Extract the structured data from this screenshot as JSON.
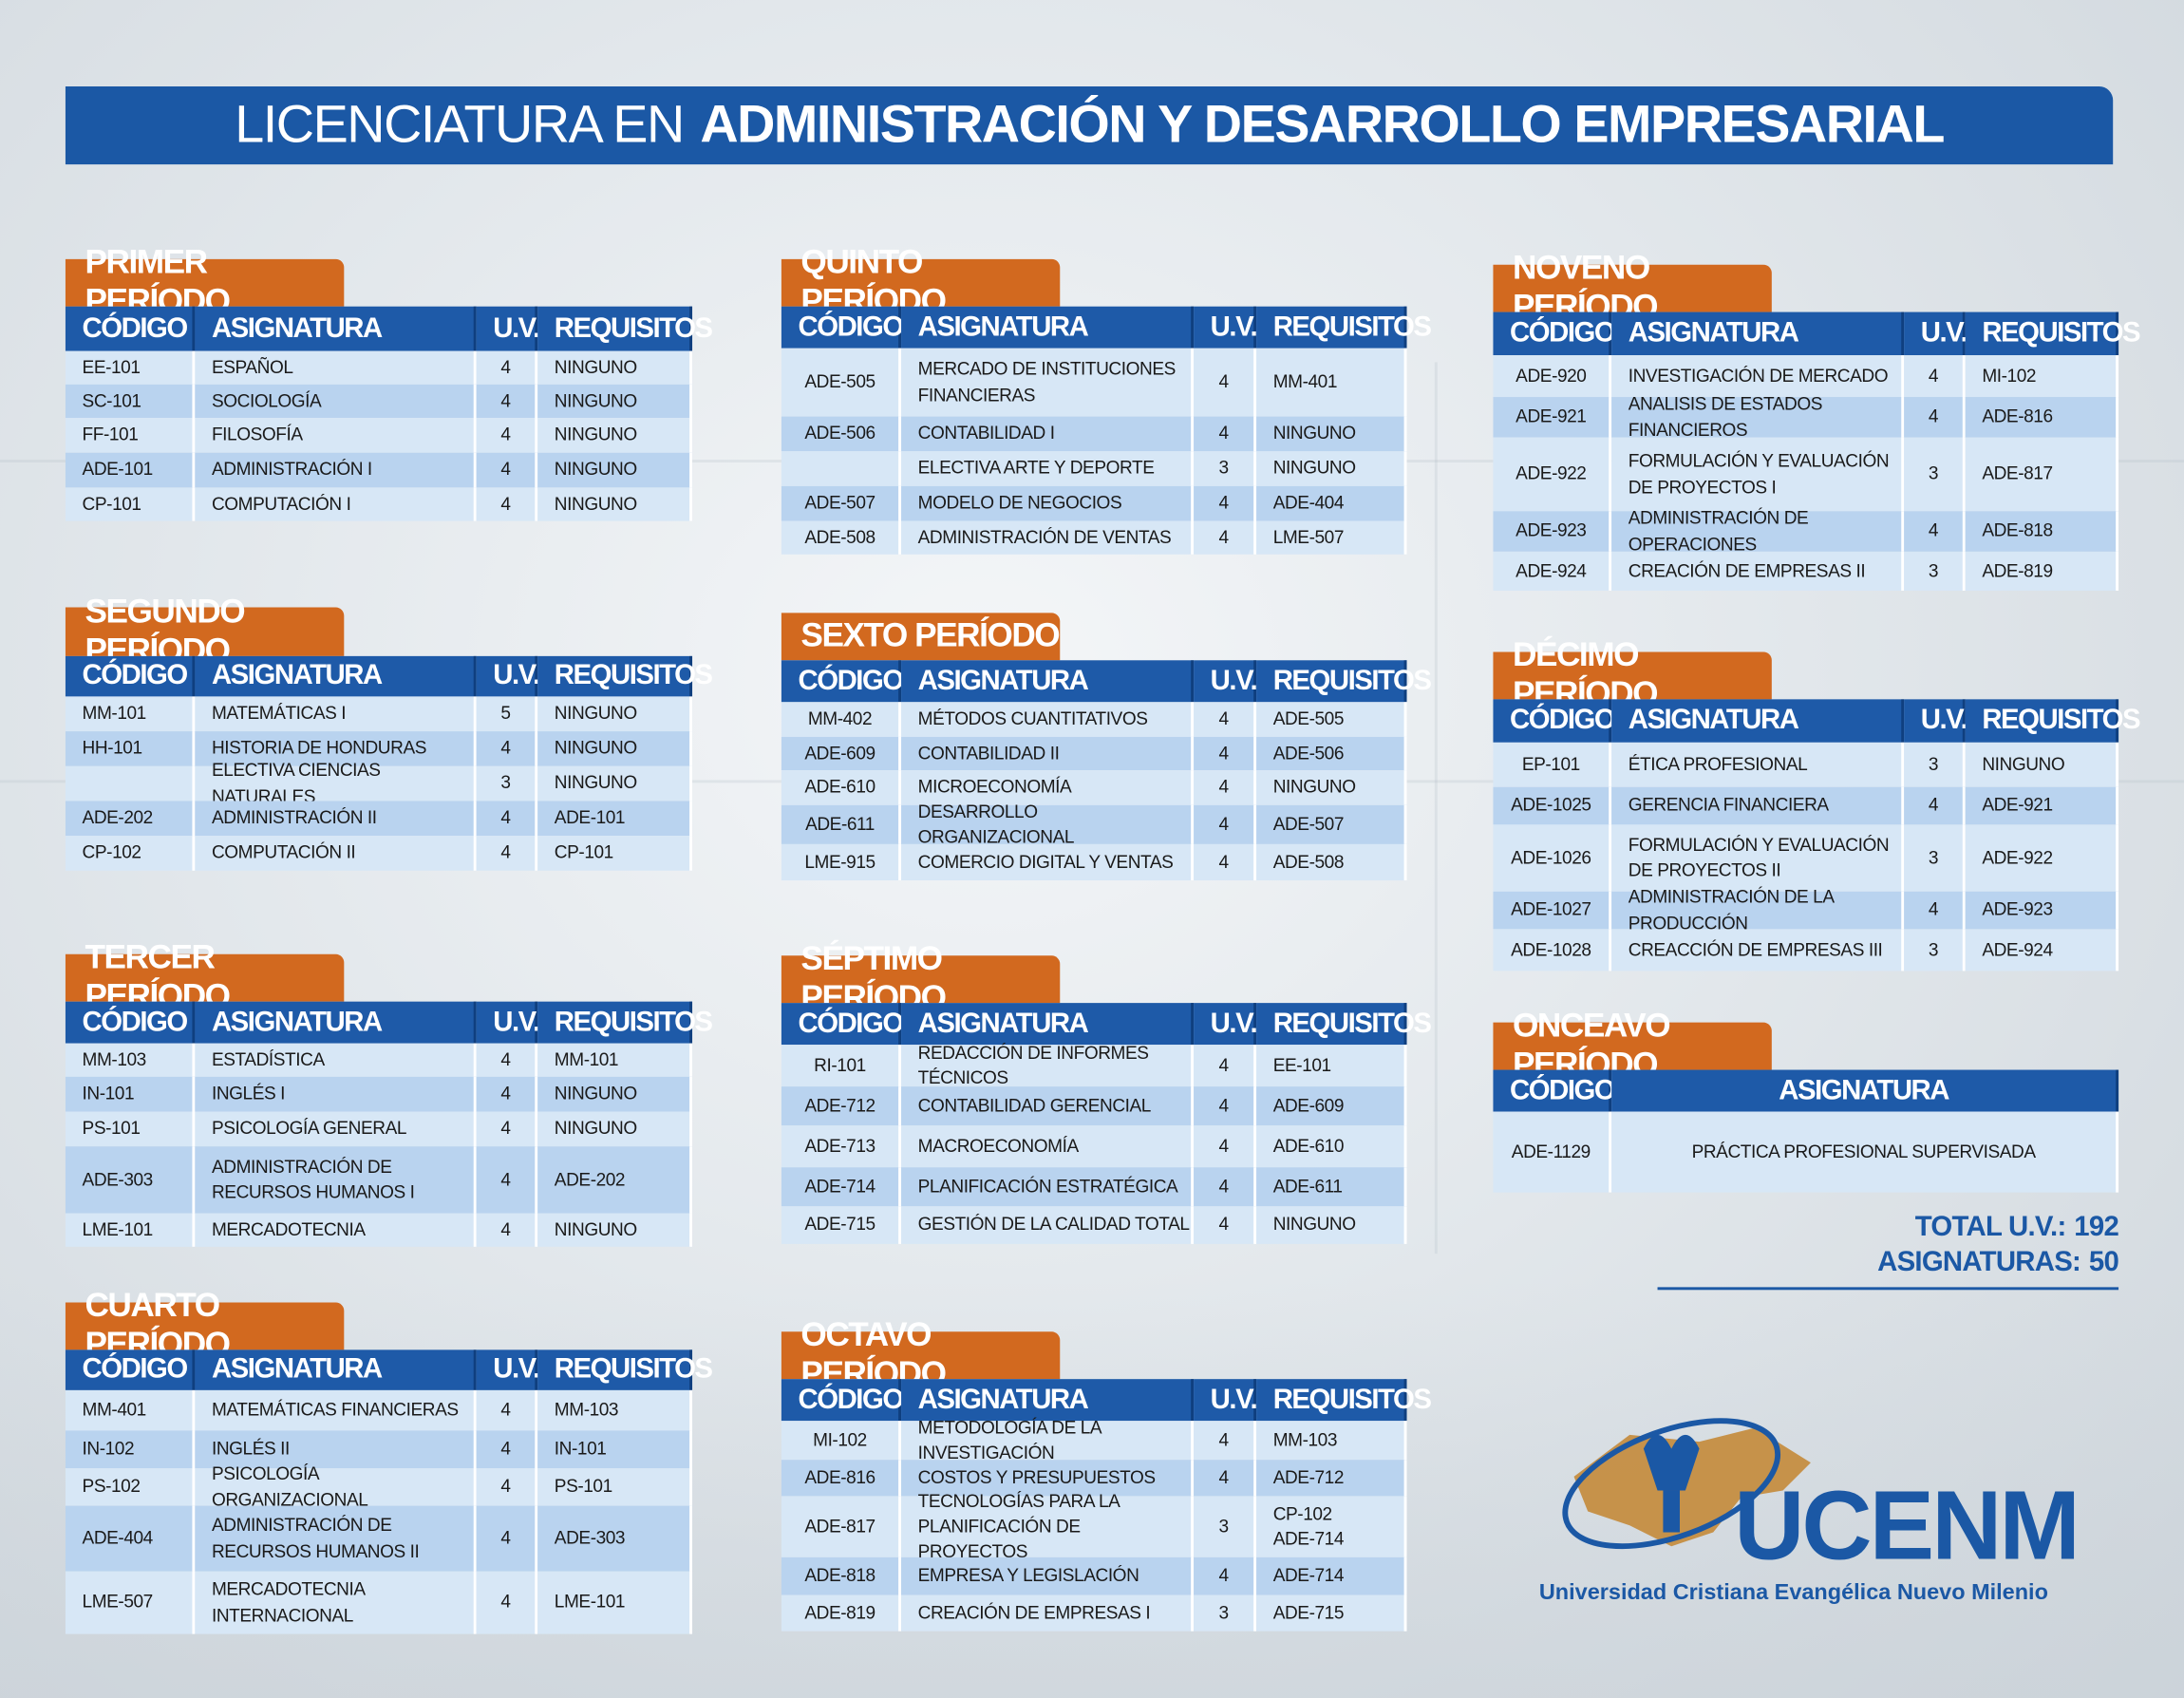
{
  "title": {
    "light": "LICENCIATURA EN",
    "bold": "ADMINISTRACIÓN Y DESARROLLO EMPRESARIAL"
  },
  "periods": [
    {
      "name": "PRIMER PERÍODO",
      "columns": [
        "CÓDIGO",
        "ASIGNATURA",
        "U.V.",
        "REQUISITOS"
      ],
      "rows": [
        [
          "EE-101",
          "ESPAÑOL",
          4,
          "NINGUNO"
        ],
        [
          "SC-101",
          "SOCIOLOGÍA",
          4,
          "NINGUNO"
        ],
        [
          "FF-101",
          "FILOSOFÍA",
          4,
          "NINGUNO"
        ],
        [
          "ADE-101",
          "ADMINISTRACIÓN I",
          4,
          "NINGUNO"
        ],
        [
          "CP-101",
          "COMPUTACIÓN I",
          4,
          "NINGUNO"
        ]
      ]
    },
    {
      "name": "SEGUNDO PERÍODO",
      "columns": [
        "CÓDIGO",
        "ASIGNATURA",
        "U.V.",
        "REQUISITOS"
      ],
      "rows": [
        [
          "MM-101",
          "MATEMÁTICAS I",
          5,
          "NINGUNO"
        ],
        [
          "HH-101",
          "HISTORIA DE HONDURAS",
          4,
          "NINGUNO"
        ],
        [
          null,
          "ELECTIVA CIENCIAS NATURALES",
          3,
          "NINGUNO"
        ],
        [
          "ADE-202",
          "ADMINISTRACIÓN II",
          4,
          "ADE-101"
        ],
        [
          "CP-102",
          "COMPUTACIÓN II",
          4,
          "CP-101"
        ]
      ]
    },
    {
      "name": "TERCER PERÍODO",
      "columns": [
        "CÓDIGO",
        "ASIGNATURA",
        "U.V.",
        "REQUISITOS"
      ],
      "rows": [
        [
          "MM-103",
          "ESTADÍSTICA",
          4,
          "MM-101"
        ],
        [
          "IN-101",
          "INGLÉS I",
          4,
          "NINGUNO"
        ],
        [
          "PS-101",
          "PSICOLOGÍA GENERAL",
          4,
          "NINGUNO"
        ],
        [
          "ADE-303",
          "ADMINISTRACIÓN DE\nRECURSOS HUMANOS I",
          4,
          "ADE-202"
        ],
        [
          "LME-101",
          "MERCADOTECNIA",
          4,
          "NINGUNO"
        ]
      ]
    },
    {
      "name": "CUARTO PERÍODO",
      "columns": [
        "CÓDIGO",
        "ASIGNATURA",
        "U.V.",
        "REQUISITOS"
      ],
      "rows": [
        [
          "MM-401",
          "MATEMÁTICAS FINANCIERAS",
          4,
          "MM-103"
        ],
        [
          "IN-102",
          "INGLÉS II",
          4,
          "IN-101"
        ],
        [
          "PS-102",
          "PSICOLOGÍA ORGANIZACIONAL",
          4,
          "PS-101"
        ],
        [
          "ADE-404",
          "ADMINISTRACIÓN DE\nRECURSOS HUMANOS II",
          4,
          "ADE-303"
        ],
        [
          "LME-507",
          "MERCADOTECNIA\nINTERNACIONAL",
          4,
          "LME-101"
        ]
      ]
    },
    {
      "name": "QUINTO PERÍODO",
      "columns": [
        "CÓDIGO",
        "ASIGNATURA",
        "U.V.",
        "REQUISITOS"
      ],
      "rows": [
        [
          "ADE-505",
          "MERCADO DE INSTITUCIONES\nFINANCIERAS",
          4,
          "MM-401"
        ],
        [
          "ADE-506",
          "CONTABILIDAD I",
          4,
          "NINGUNO"
        ],
        [
          null,
          "ELECTIVA ARTE Y DEPORTE",
          3,
          "NINGUNO"
        ],
        [
          "ADE-507",
          "MODELO DE NEGOCIOS",
          4,
          "ADE-404"
        ],
        [
          "ADE-508",
          "ADMINISTRACIÓN DE VENTAS",
          4,
          "LME-507"
        ]
      ]
    },
    {
      "name": "SEXTO PERÍODO",
      "columns": [
        "CÓDIGO",
        "ASIGNATURA",
        "U.V.",
        "REQUISITOS"
      ],
      "rows": [
        [
          "MM-402",
          "MÉTODOS CUANTITATIVOS",
          4,
          "ADE-505"
        ],
        [
          "ADE-609",
          "CONTABILIDAD II",
          4,
          "ADE-506"
        ],
        [
          "ADE-610",
          "MICROECONOMÍA",
          4,
          "NINGUNO"
        ],
        [
          "ADE-611",
          "DESARROLLO ORGANIZACIONAL",
          4,
          "ADE-507"
        ],
        [
          "LME-915",
          "COMERCIO DIGITAL Y VENTAS",
          4,
          "ADE-508"
        ]
      ]
    },
    {
      "name": "SÉPTIMO PERÍODO",
      "columns": [
        "CÓDIGO",
        "ASIGNATURA",
        "U.V.",
        "REQUISITOS"
      ],
      "rows": [
        [
          "RI-101",
          "REDACCIÓN DE INFORMES TÉCNICOS",
          4,
          "EE-101"
        ],
        [
          "ADE-712",
          "CONTABILIDAD GERENCIAL",
          4,
          "ADE-609"
        ],
        [
          "ADE-713",
          "MACROECONOMÍA",
          4,
          "ADE-610"
        ],
        [
          "ADE-714",
          "PLANIFICACIÓN ESTRATÉGICA",
          4,
          "ADE-611"
        ],
        [
          "ADE-715",
          "GESTIÓN DE LA CALIDAD TOTAL",
          4,
          "NINGUNO"
        ]
      ]
    },
    {
      "name": "OCTAVO PERÍODO",
      "columns": [
        "CÓDIGO",
        "ASIGNATURA",
        "U.V.",
        "REQUISITOS"
      ],
      "rows": [
        [
          "MI-102",
          "METODOLOGÍA DE LA INVESTIGACIÓN",
          4,
          "MM-103"
        ],
        [
          "ADE-816",
          "COSTOS Y PRESUPUESTOS",
          4,
          "ADE-712"
        ],
        [
          "ADE-817",
          "TECNOLOGÍAS PARA LA\nPLANIFICACIÓN DE PROYECTOS",
          3,
          "CP-102\nADE-714"
        ],
        [
          "ADE-818",
          "EMPRESA Y LEGISLACIÓN",
          4,
          "ADE-714"
        ],
        [
          "ADE-819",
          "CREACIÓN DE EMPRESAS I",
          3,
          "ADE-715"
        ]
      ]
    },
    {
      "name": "NOVENO PERÍODO",
      "columns": [
        "CÓDIGO",
        "ASIGNATURA",
        "U.V.",
        "REQUISITOS"
      ],
      "rows": [
        [
          "ADE-920",
          "INVESTIGACIÓN DE MERCADO",
          4,
          "MI-102"
        ],
        [
          "ADE-921",
          "ANALISIS DE ESTADOS FINANCIEROS",
          4,
          "ADE-816"
        ],
        [
          "ADE-922",
          "FORMULACIÓN Y EVALUACIÓN\nDE PROYECTOS I",
          3,
          "ADE-817"
        ],
        [
          "ADE-923",
          "ADMINISTRACIÓN DE OPERACIONES",
          4,
          "ADE-818"
        ],
        [
          "ADE-924",
          "CREACIÓN DE EMPRESAS II",
          3,
          "ADE-819"
        ]
      ]
    },
    {
      "name": "DÉCIMO PERÍODO",
      "columns": [
        "CÓDIGO",
        "ASIGNATURA",
        "U.V.",
        "REQUISITOS"
      ],
      "rows": [
        [
          "EP-101",
          "ÉTICA PROFESIONAL",
          3,
          "NINGUNO"
        ],
        [
          "ADE-1025",
          "GERENCIA FINANCIERA",
          4,
          "ADE-921"
        ],
        [
          "ADE-1026",
          "FORMULACIÓN Y EVALUACIÓN\nDE PROYECTOS II",
          3,
          "ADE-922"
        ],
        [
          "ADE-1027",
          "ADMINISTRACIÓN DE LA PRODUCCIÓN",
          4,
          "ADE-923"
        ],
        [
          "ADE-1028",
          "CREACCIÓN DE EMPRESAS III",
          3,
          "ADE-924"
        ]
      ]
    },
    {
      "name": "ONCEAVO PERÍODO",
      "columns": [
        "CÓDIGO",
        "ASIGNATURA"
      ],
      "rows": [
        [
          "ADE-1129",
          "PRÁCTICA PROFESIONAL SUPERVISADA"
        ]
      ]
    }
  ],
  "totals": [
    {
      "label": "TOTAL U.V.:",
      "value": 192
    },
    {
      "label": "ASIGNATURAS:",
      "value": 50
    }
  ],
  "logo": {
    "name": "UCENM",
    "subtitle": "Universidad Cristiana Evangélica Nuevo Milenio"
  }
}
